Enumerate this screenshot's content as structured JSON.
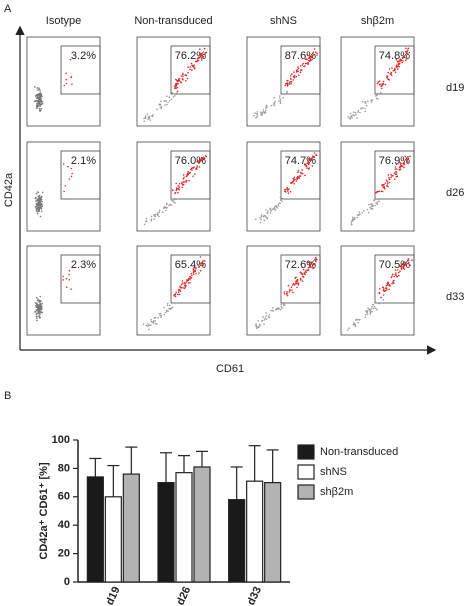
{
  "panel_a": {
    "label": "A",
    "columns": [
      "Isotype",
      "Non-transduced",
      "shNS",
      "shβ2m"
    ],
    "rows": [
      "d19",
      "d26",
      "d33"
    ],
    "gate_percentages": [
      [
        "3.2%",
        "76.2%",
        "87.6%",
        "74.8%"
      ],
      [
        "2.1%",
        "76.0%",
        "74.7%",
        "76.9%"
      ],
      [
        "2.3%",
        "65.4%",
        "72.6%",
        "70.5%"
      ]
    ],
    "y_axis_label": "CD42a",
    "x_axis_label": "CD61"
  },
  "chart_data": {
    "type": "bar",
    "panel_label": "B",
    "y_axis_label": "CD42a⁺ CD61⁺ [%]",
    "categories": [
      "d19",
      "d26",
      "d33"
    ],
    "series": [
      {
        "name": "Non-transduced",
        "color": "#1a1a1a",
        "values": [
          74,
          70,
          58
        ],
        "errors": [
          13,
          21,
          23
        ]
      },
      {
        "name": "shNS",
        "color": "#ffffff",
        "values": [
          60,
          77,
          71
        ],
        "errors": [
          22,
          12,
          25
        ]
      },
      {
        "name": "shβ2m",
        "color": "#b3b3b3",
        "values": [
          76,
          81,
          70
        ],
        "errors": [
          19,
          11,
          23
        ]
      }
    ],
    "ylim": [
      0,
      100
    ],
    "yticks": [
      0,
      20,
      40,
      60,
      80,
      100
    ]
  }
}
